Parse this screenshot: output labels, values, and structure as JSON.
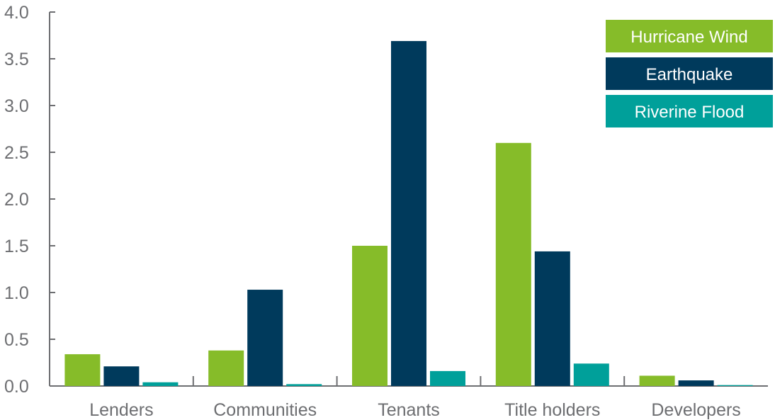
{
  "chart_data": {
    "type": "bar",
    "categories": [
      "Lenders",
      "Communities",
      "Tenants",
      "Title holders",
      "Developers"
    ],
    "series": [
      {
        "name": "Hurricane Wind",
        "color": "#86bc29",
        "values": [
          0.34,
          0.38,
          1.5,
          2.6,
          0.11
        ]
      },
      {
        "name": "Earthquake",
        "color": "#003a5c",
        "values": [
          0.21,
          1.03,
          3.69,
          1.44,
          0.06
        ]
      },
      {
        "name": "Riverine Flood",
        "color": "#00a09a",
        "values": [
          0.04,
          0.02,
          0.16,
          0.24,
          0.01
        ]
      }
    ],
    "yticks": [
      "0.0",
      "0.5",
      "1.0",
      "1.5",
      "2.0",
      "2.5",
      "3.0",
      "3.5",
      "4.0"
    ],
    "ylim": [
      0,
      4.0
    ],
    "title": "",
    "xlabel": "",
    "ylabel": "",
    "legend_position": "top-right",
    "grid": false
  }
}
